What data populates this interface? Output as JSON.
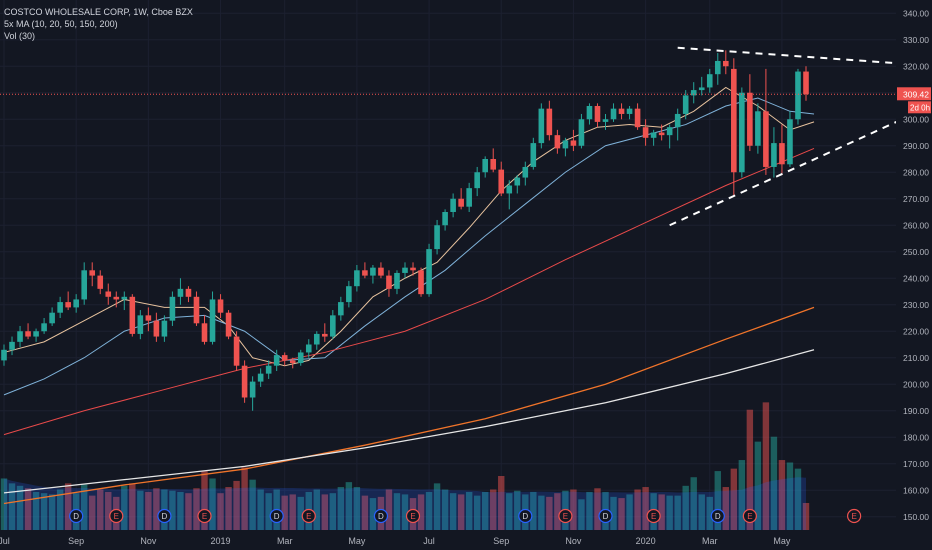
{
  "legend": {
    "title": "COSTCO WHOLESALE CORP, 1W, Cboe BZX",
    "ma_label": "5x MA (10, 20, 50, 150, 200)",
    "vol_label": "Vol (30)"
  },
  "price_label": {
    "value": "309.42",
    "countdown": "2d 0h"
  },
  "colors": {
    "background": "#131722",
    "up": "#26a69a",
    "down": "#ef5350",
    "ma10": "#e8c39e",
    "ma20": "#7fb2d9",
    "ma50": "#e84a4a",
    "ma150": "#f0742a",
    "ma200": "#e6e6e6",
    "grid": "#1c2030",
    "axis_text": "#b2b5be",
    "trendline": "#ffffff"
  },
  "chart_data": {
    "type": "candlestick",
    "title": "COSTCO WHOLESALE CORP, 1W, Cboe BZX",
    "ylim": [
      145,
      345
    ],
    "y_ticks": [
      150,
      160,
      170,
      180,
      190,
      200,
      210,
      220,
      230,
      240,
      250,
      260,
      270,
      280,
      290,
      300,
      310,
      320,
      330,
      340
    ],
    "x_labels": [
      {
        "label": "Jul",
        "week": 0
      },
      {
        "label": "Sep",
        "week": 9
      },
      {
        "label": "Nov",
        "week": 18
      },
      {
        "label": "2019",
        "week": 27
      },
      {
        "label": "Mar",
        "week": 35
      },
      {
        "label": "May",
        "week": 44
      },
      {
        "label": "Jul",
        "week": 53
      },
      {
        "label": "Sep",
        "week": 62
      },
      {
        "label": "Nov",
        "week": 71
      },
      {
        "label": "2020",
        "week": 80
      },
      {
        "label": "Mar",
        "week": 88
      },
      {
        "label": "May",
        "week": 97
      }
    ],
    "candles": [
      {
        "o": 209,
        "h": 215,
        "l": 207,
        "c": 213
      },
      {
        "o": 213,
        "h": 218,
        "l": 211,
        "c": 216
      },
      {
        "o": 216,
        "h": 222,
        "l": 214,
        "c": 220
      },
      {
        "o": 220,
        "h": 223,
        "l": 217,
        "c": 218
      },
      {
        "o": 218,
        "h": 221,
        "l": 216,
        "c": 220
      },
      {
        "o": 220,
        "h": 225,
        "l": 219,
        "c": 223
      },
      {
        "o": 223,
        "h": 229,
        "l": 222,
        "c": 227
      },
      {
        "o": 227,
        "h": 233,
        "l": 225,
        "c": 231
      },
      {
        "o": 231,
        "h": 235,
        "l": 228,
        "c": 229
      },
      {
        "o": 229,
        "h": 234,
        "l": 227,
        "c": 232
      },
      {
        "o": 232,
        "h": 246,
        "l": 230,
        "c": 243
      },
      {
        "o": 243,
        "h": 246,
        "l": 237,
        "c": 241
      },
      {
        "o": 241,
        "h": 243,
        "l": 234,
        "c": 236
      },
      {
        "o": 235,
        "h": 238,
        "l": 230,
        "c": 233
      },
      {
        "o": 233,
        "h": 235,
        "l": 229,
        "c": 232
      },
      {
        "o": 232,
        "h": 235,
        "l": 228,
        "c": 233
      },
      {
        "o": 233,
        "h": 234,
        "l": 218,
        "c": 219
      },
      {
        "o": 219,
        "h": 228,
        "l": 217,
        "c": 226
      },
      {
        "o": 226,
        "h": 229,
        "l": 220,
        "c": 224
      },
      {
        "o": 224,
        "h": 227,
        "l": 216,
        "c": 218
      },
      {
        "o": 218,
        "h": 226,
        "l": 216,
        "c": 224
      },
      {
        "o": 224,
        "h": 235,
        "l": 222,
        "c": 233
      },
      {
        "o": 233,
        "h": 240,
        "l": 230,
        "c": 236
      },
      {
        "o": 236,
        "h": 237,
        "l": 231,
        "c": 233
      },
      {
        "o": 233,
        "h": 235,
        "l": 222,
        "c": 223
      },
      {
        "o": 223,
        "h": 226,
        "l": 215,
        "c": 216
      },
      {
        "o": 216,
        "h": 235,
        "l": 215,
        "c": 232
      },
      {
        "o": 232,
        "h": 234,
        "l": 225,
        "c": 227
      },
      {
        "o": 227,
        "h": 228,
        "l": 217,
        "c": 218
      },
      {
        "o": 218,
        "h": 220,
        "l": 205,
        "c": 207
      },
      {
        "o": 207,
        "h": 209,
        "l": 193,
        "c": 195
      },
      {
        "o": 195,
        "h": 203,
        "l": 190,
        "c": 201
      },
      {
        "o": 201,
        "h": 206,
        "l": 199,
        "c": 204
      },
      {
        "o": 204,
        "h": 209,
        "l": 202,
        "c": 207
      },
      {
        "o": 207,
        "h": 213,
        "l": 205,
        "c": 211
      },
      {
        "o": 211,
        "h": 212,
        "l": 207,
        "c": 209
      },
      {
        "o": 209,
        "h": 210,
        "l": 206,
        "c": 208
      },
      {
        "o": 208,
        "h": 213,
        "l": 207,
        "c": 212
      },
      {
        "o": 212,
        "h": 217,
        "l": 210,
        "c": 215
      },
      {
        "o": 215,
        "h": 220,
        "l": 213,
        "c": 219
      },
      {
        "o": 219,
        "h": 223,
        "l": 216,
        "c": 218
      },
      {
        "o": 218,
        "h": 228,
        "l": 217,
        "c": 226
      },
      {
        "o": 226,
        "h": 233,
        "l": 224,
        "c": 231
      },
      {
        "o": 231,
        "h": 239,
        "l": 229,
        "c": 237
      },
      {
        "o": 237,
        "h": 245,
        "l": 235,
        "c": 243
      },
      {
        "o": 243,
        "h": 246,
        "l": 240,
        "c": 241
      },
      {
        "o": 241,
        "h": 245,
        "l": 238,
        "c": 244
      },
      {
        "o": 244,
        "h": 246,
        "l": 240,
        "c": 241
      },
      {
        "o": 241,
        "h": 243,
        "l": 233,
        "c": 236
      },
      {
        "o": 236,
        "h": 243,
        "l": 234,
        "c": 242
      },
      {
        "o": 242,
        "h": 246,
        "l": 240,
        "c": 244
      },
      {
        "o": 244,
        "h": 246,
        "l": 241,
        "c": 243
      },
      {
        "o": 243,
        "h": 244,
        "l": 233,
        "c": 234
      },
      {
        "o": 234,
        "h": 253,
        "l": 233,
        "c": 251
      },
      {
        "o": 251,
        "h": 262,
        "l": 249,
        "c": 260
      },
      {
        "o": 260,
        "h": 266,
        "l": 258,
        "c": 265
      },
      {
        "o": 265,
        "h": 272,
        "l": 263,
        "c": 270
      },
      {
        "o": 270,
        "h": 274,
        "l": 266,
        "c": 267
      },
      {
        "o": 267,
        "h": 276,
        "l": 265,
        "c": 274
      },
      {
        "o": 274,
        "h": 282,
        "l": 271,
        "c": 280
      },
      {
        "o": 280,
        "h": 286,
        "l": 278,
        "c": 285
      },
      {
        "o": 285,
        "h": 289,
        "l": 280,
        "c": 281
      },
      {
        "o": 281,
        "h": 284,
        "l": 271,
        "c": 272
      },
      {
        "o": 272,
        "h": 277,
        "l": 266,
        "c": 275
      },
      {
        "o": 275,
        "h": 279,
        "l": 272,
        "c": 278
      },
      {
        "o": 278,
        "h": 284,
        "l": 275,
        "c": 282
      },
      {
        "o": 282,
        "h": 293,
        "l": 281,
        "c": 291
      },
      {
        "o": 291,
        "h": 306,
        "l": 289,
        "c": 304
      },
      {
        "o": 304,
        "h": 307,
        "l": 292,
        "c": 294
      },
      {
        "o": 294,
        "h": 296,
        "l": 287,
        "c": 289
      },
      {
        "o": 289,
        "h": 293,
        "l": 286,
        "c": 292
      },
      {
        "o": 292,
        "h": 296,
        "l": 288,
        "c": 290
      },
      {
        "o": 290,
        "h": 302,
        "l": 289,
        "c": 300
      },
      {
        "o": 300,
        "h": 306,
        "l": 298,
        "c": 305
      },
      {
        "o": 305,
        "h": 306,
        "l": 297,
        "c": 299
      },
      {
        "o": 299,
        "h": 302,
        "l": 296,
        "c": 300
      },
      {
        "o": 300,
        "h": 306,
        "l": 299,
        "c": 304
      },
      {
        "o": 304,
        "h": 306,
        "l": 300,
        "c": 302
      },
      {
        "o": 302,
        "h": 305,
        "l": 300,
        "c": 304
      },
      {
        "o": 304,
        "h": 306,
        "l": 296,
        "c": 297
      },
      {
        "o": 297,
        "h": 300,
        "l": 290,
        "c": 293
      },
      {
        "o": 293,
        "h": 296,
        "l": 290,
        "c": 295
      },
      {
        "o": 295,
        "h": 298,
        "l": 292,
        "c": 294
      },
      {
        "o": 294,
        "h": 298,
        "l": 289,
        "c": 297
      },
      {
        "o": 297,
        "h": 304,
        "l": 292,
        "c": 302
      },
      {
        "o": 302,
        "h": 311,
        "l": 300,
        "c": 309
      },
      {
        "o": 309,
        "h": 314,
        "l": 306,
        "c": 311
      },
      {
        "o": 311,
        "h": 316,
        "l": 309,
        "c": 312
      },
      {
        "o": 312,
        "h": 319,
        "l": 310,
        "c": 317
      },
      {
        "o": 317,
        "h": 325,
        "l": 313,
        "c": 322
      },
      {
        "o": 322,
        "h": 326,
        "l": 317,
        "c": 320
      },
      {
        "o": 319,
        "h": 323,
        "l": 271,
        "c": 280
      },
      {
        "o": 280,
        "h": 312,
        "l": 278,
        "c": 310
      },
      {
        "o": 310,
        "h": 317,
        "l": 288,
        "c": 290
      },
      {
        "o": 290,
        "h": 306,
        "l": 287,
        "c": 303
      },
      {
        "o": 303,
        "h": 319,
        "l": 279,
        "c": 282
      },
      {
        "o": 282,
        "h": 297,
        "l": 278,
        "c": 291
      },
      {
        "o": 291,
        "h": 298,
        "l": 279,
        "c": 283
      },
      {
        "o": 283,
        "h": 303,
        "l": 282,
        "c": 300
      },
      {
        "o": 300,
        "h": 319,
        "l": 298,
        "c": 318
      },
      {
        "o": 318,
        "h": 320,
        "l": 307,
        "c": 309.42
      }
    ],
    "volume": [
      42,
      38,
      36,
      34,
      31,
      30,
      29,
      33,
      38,
      30,
      37,
      28,
      33,
      31,
      27,
      36,
      38,
      32,
      31,
      34,
      33,
      32,
      31,
      30,
      34,
      48,
      42,
      30,
      35,
      40,
      51,
      41,
      33,
      30,
      33,
      28,
      29,
      27,
      31,
      33,
      29,
      30,
      35,
      39,
      35,
      28,
      26,
      27,
      33,
      30,
      29,
      26,
      29,
      31,
      38,
      33,
      30,
      29,
      31,
      28,
      31,
      33,
      44,
      30,
      32,
      29,
      31,
      28,
      27,
      30,
      32,
      33,
      25,
      31,
      34,
      31,
      27,
      26,
      29,
      33,
      35,
      30,
      29,
      28,
      28,
      36,
      43,
      29,
      27,
      48,
      35,
      50,
      57,
      98,
      72,
      104,
      76,
      57,
      55,
      50,
      22
    ],
    "volume_max": 110,
    "ma": [
      {
        "name": "10",
        "points": [
          [
            0,
            212
          ],
          [
            5,
            216
          ],
          [
            10,
            224
          ],
          [
            15,
            232
          ],
          [
            20,
            229
          ],
          [
            25,
            229
          ],
          [
            28,
            222
          ],
          [
            31,
            210
          ],
          [
            35,
            207
          ],
          [
            38,
            209
          ],
          [
            42,
            220
          ],
          [
            46,
            233
          ],
          [
            50,
            240
          ],
          [
            54,
            246
          ],
          [
            58,
            259
          ],
          [
            62,
            273
          ],
          [
            66,
            284
          ],
          [
            70,
            292
          ],
          [
            74,
            297
          ],
          [
            78,
            298
          ],
          [
            82,
            297
          ],
          [
            86,
            303
          ],
          [
            90,
            312
          ],
          [
            94,
            305
          ],
          [
            98,
            296
          ],
          [
            101,
            299
          ]
        ]
      },
      {
        "name": "20",
        "points": [
          [
            0,
            196
          ],
          [
            5,
            202
          ],
          [
            10,
            210
          ],
          [
            15,
            220
          ],
          [
            20,
            225
          ],
          [
            25,
            226
          ],
          [
            30,
            220
          ],
          [
            35,
            209
          ],
          [
            40,
            210
          ],
          [
            45,
            222
          ],
          [
            50,
            233
          ],
          [
            55,
            243
          ],
          [
            60,
            256
          ],
          [
            65,
            268
          ],
          [
            70,
            280
          ],
          [
            75,
            290
          ],
          [
            80,
            294
          ],
          [
            85,
            298
          ],
          [
            90,
            305
          ],
          [
            94,
            308
          ],
          [
            98,
            303
          ],
          [
            101,
            302
          ]
        ]
      },
      {
        "name": "50",
        "points": [
          [
            0,
            181
          ],
          [
            10,
            190
          ],
          [
            20,
            198
          ],
          [
            30,
            206
          ],
          [
            40,
            212
          ],
          [
            50,
            220
          ],
          [
            60,
            232
          ],
          [
            70,
            247
          ],
          [
            80,
            261
          ],
          [
            90,
            275
          ],
          [
            101,
            289
          ]
        ]
      },
      {
        "name": "150",
        "points": [
          [
            0,
            155
          ],
          [
            15,
            162
          ],
          [
            30,
            168
          ],
          [
            45,
            177
          ],
          [
            60,
            187
          ],
          [
            75,
            200
          ],
          [
            90,
            217
          ],
          [
            101,
            229
          ]
        ]
      },
      {
        "name": "200",
        "points": [
          [
            0,
            159
          ],
          [
            15,
            164
          ],
          [
            30,
            169
          ],
          [
            45,
            176
          ],
          [
            60,
            184
          ],
          [
            75,
            193
          ],
          [
            90,
            204
          ],
          [
            101,
            213
          ]
        ]
      }
    ],
    "price_line": 309.42,
    "trendlines": [
      {
        "x1": 84,
        "y1": 327,
        "x2": 112,
        "y2": 321
      },
      {
        "x1": 83,
        "y1": 260,
        "x2": 112,
        "y2": 300
      }
    ],
    "events": [
      {
        "week": 9,
        "type": "D"
      },
      {
        "week": 14,
        "type": "E"
      },
      {
        "week": 20,
        "type": "D"
      },
      {
        "week": 25,
        "type": "E"
      },
      {
        "week": 34,
        "type": "D"
      },
      {
        "week": 38,
        "type": "E"
      },
      {
        "week": 47,
        "type": "D"
      },
      {
        "week": 51,
        "type": "E"
      },
      {
        "week": 65,
        "type": "D"
      },
      {
        "week": 70,
        "type": "E"
      },
      {
        "week": 75,
        "type": "D"
      },
      {
        "week": 81,
        "type": "E"
      },
      {
        "week": 89,
        "type": "D"
      },
      {
        "week": 93,
        "type": "E"
      },
      {
        "week": 106,
        "type": "E"
      }
    ]
  }
}
